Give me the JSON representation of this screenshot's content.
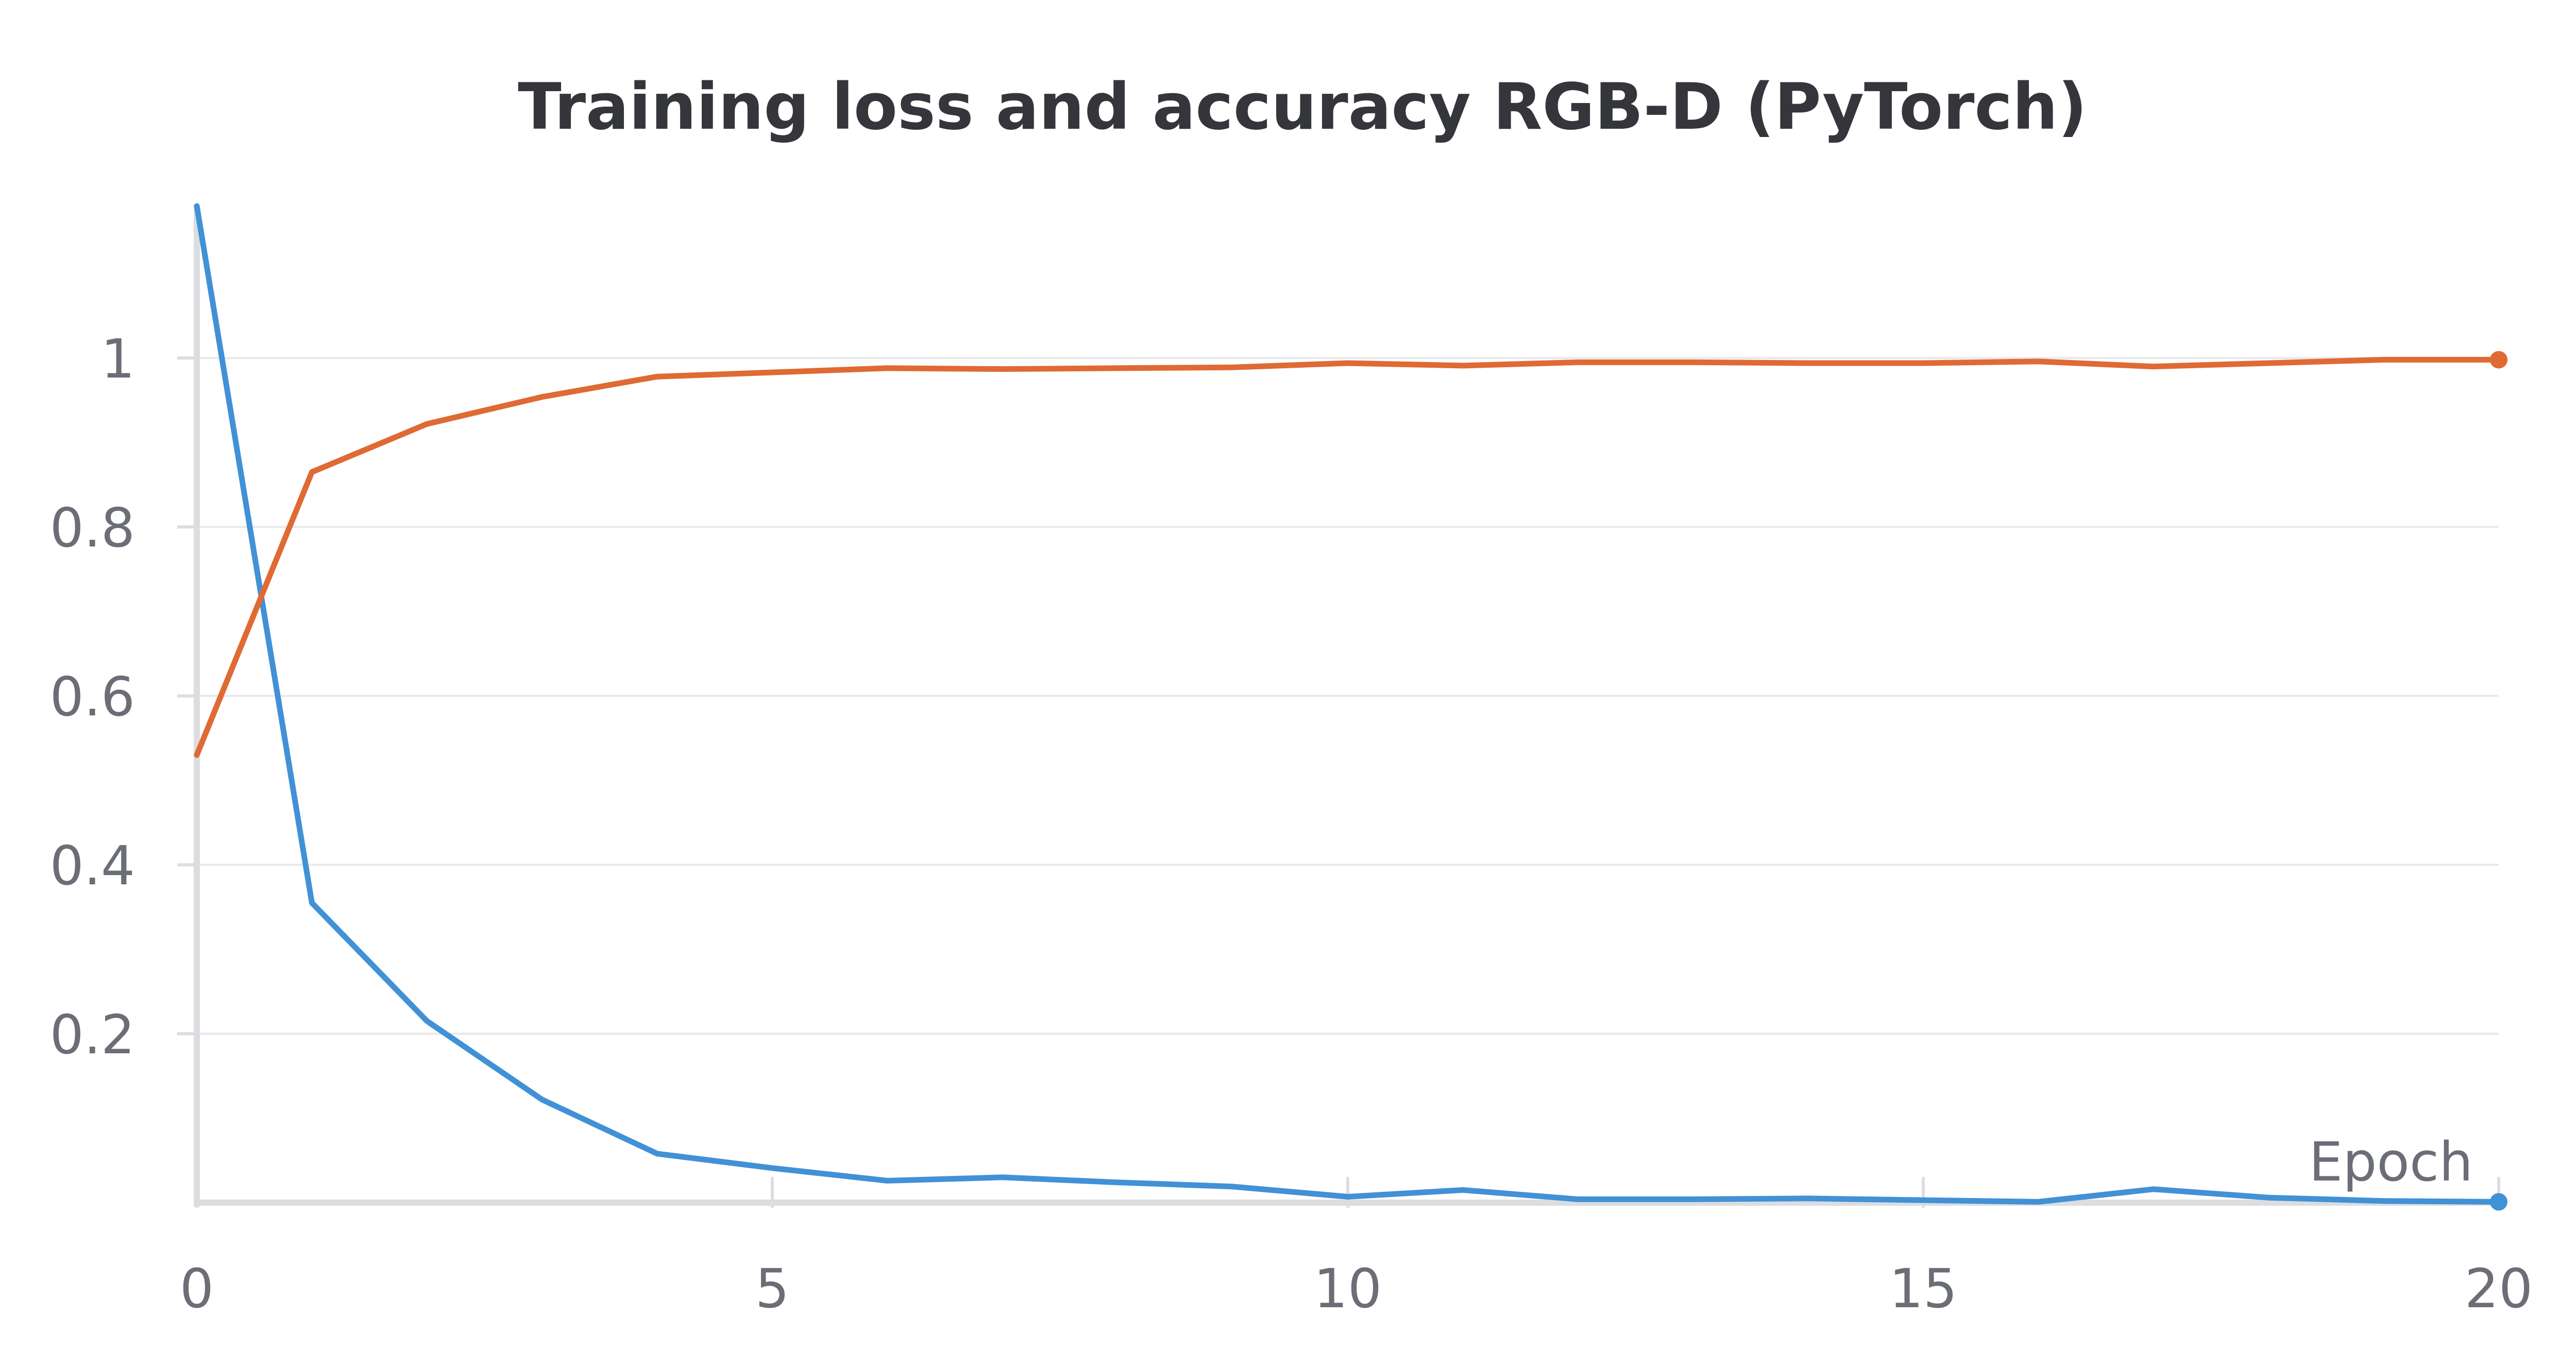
{
  "chart_data": {
    "type": "line",
    "title": "Training loss and accuracy RGB-D (PyTorch)",
    "xlabel": "Epoch",
    "ylabel": "",
    "xlim": [
      0,
      20
    ],
    "ylim": [
      0,
      1.18
    ],
    "x_ticks": [
      0,
      5,
      10,
      15,
      20
    ],
    "x_tick_labels": [
      "0",
      "5",
      "10",
      "15",
      "20"
    ],
    "y_ticks": [
      0.2,
      0.4,
      0.6,
      0.8,
      1
    ],
    "y_tick_labels": [
      "0.2",
      "0.4",
      "0.6",
      "0.8",
      "1"
    ],
    "grid": true,
    "legend": "none",
    "x": [
      0,
      1,
      2,
      3,
      4,
      5,
      6,
      7,
      8,
      9,
      10,
      11,
      12,
      13,
      14,
      15,
      16,
      17,
      18,
      19,
      20
    ],
    "series": [
      {
        "color": "#4191d6",
        "values": [
          1.18,
          0.355,
          0.215,
          0.122,
          0.058,
          0.041,
          0.026,
          0.03,
          0.024,
          0.019,
          0.007,
          0.015,
          0.004,
          0.004,
          0.005,
          0.003,
          0.001,
          0.016,
          0.006,
          0.002,
          0.001
        ]
      },
      {
        "color": "#df6a34",
        "values": [
          0.53,
          0.865,
          0.922,
          0.954,
          0.978,
          0.983,
          0.988,
          0.987,
          0.988,
          0.989,
          0.994,
          0.991,
          0.995,
          0.995,
          0.994,
          0.994,
          0.996,
          0.99,
          0.994,
          0.998,
          0.998
        ]
      }
    ]
  }
}
